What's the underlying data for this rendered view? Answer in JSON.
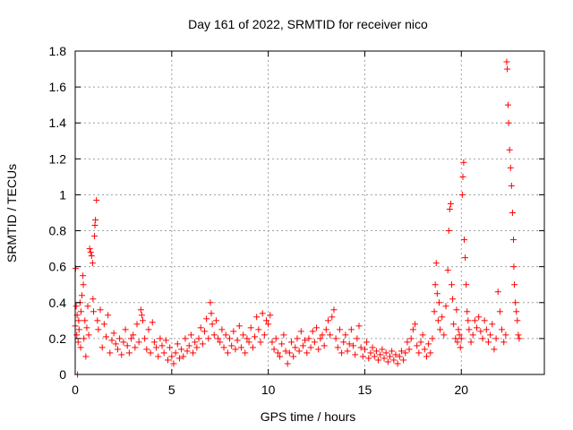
{
  "chart_data": {
    "type": "scatter",
    "title": "Day 161 of 2022, SRMTID for receiver nico",
    "xlabel": "GPS time / hours",
    "ylabel": "SRMTID / TECUs",
    "xlim": [
      0,
      24.3
    ],
    "ylim": [
      0,
      1.8
    ],
    "xticks": [
      0,
      5,
      10,
      15,
      20
    ],
    "xtick_labels": [
      "0",
      "5",
      "10",
      "15",
      "20"
    ],
    "yticks": [
      0,
      0.2,
      0.4,
      0.6,
      0.8,
      1.0,
      1.2,
      1.4,
      1.6,
      1.8
    ],
    "ytick_labels": [
      "0",
      "0.2",
      "0.4",
      "0.6",
      "0.8",
      "1",
      "1.2",
      "1.4",
      "1.6",
      "1.8"
    ],
    "grid": true,
    "marker": "+",
    "color": "#ff0000",
    "series": [
      {
        "name": "SRMTID",
        "points": [
          [
            0.0,
            0.27
          ],
          [
            0.02,
            0.59
          ],
          [
            0.05,
            0.38
          ],
          [
            0.08,
            0.22
          ],
          [
            0.1,
            0.33
          ],
          [
            0.12,
            0.0
          ],
          [
            0.15,
            0.18
          ],
          [
            0.18,
            0.3
          ],
          [
            0.2,
            0.25
          ],
          [
            0.25,
            0.4
          ],
          [
            0.28,
            0.15
          ],
          [
            0.3,
            0.35
          ],
          [
            0.35,
            0.44
          ],
          [
            0.4,
            0.55
          ],
          [
            0.42,
            0.5
          ],
          [
            0.45,
            0.2
          ],
          [
            0.5,
            0.3
          ],
          [
            0.55,
            0.1
          ],
          [
            0.6,
            0.26
          ],
          [
            0.65,
            0.38
          ],
          [
            0.7,
            0.22
          ],
          [
            0.75,
            0.7
          ],
          [
            0.8,
            0.68
          ],
          [
            0.85,
            0.66
          ],
          [
            0.9,
            0.62
          ],
          [
            0.92,
            0.42
          ],
          [
            0.95,
            0.35
          ],
          [
            1.0,
            0.77
          ],
          [
            1.02,
            0.83
          ],
          [
            1.05,
            0.86
          ],
          [
            1.1,
            0.97
          ],
          [
            1.15,
            0.3
          ],
          [
            1.2,
            0.25
          ],
          [
            1.3,
            0.36
          ],
          [
            1.4,
            0.15
          ],
          [
            1.5,
            0.28
          ],
          [
            1.6,
            0.21
          ],
          [
            1.7,
            0.33
          ],
          [
            1.8,
            0.12
          ],
          [
            1.9,
            0.19
          ],
          [
            2.0,
            0.23
          ],
          [
            2.1,
            0.17
          ],
          [
            2.2,
            0.14
          ],
          [
            2.3,
            0.2
          ],
          [
            2.4,
            0.11
          ],
          [
            2.5,
            0.18
          ],
          [
            2.6,
            0.25
          ],
          [
            2.7,
            0.16
          ],
          [
            2.8,
            0.12
          ],
          [
            2.9,
            0.2
          ],
          [
            3.0,
            0.22
          ],
          [
            3.1,
            0.15
          ],
          [
            3.2,
            0.28
          ],
          [
            3.3,
            0.18
          ],
          [
            3.4,
            0.36
          ],
          [
            3.45,
            0.33
          ],
          [
            3.5,
            0.3
          ],
          [
            3.6,
            0.2
          ],
          [
            3.7,
            0.14
          ],
          [
            3.8,
            0.25
          ],
          [
            3.9,
            0.12
          ],
          [
            4.0,
            0.29
          ],
          [
            4.1,
            0.18
          ],
          [
            4.2,
            0.15
          ],
          [
            4.3,
            0.1
          ],
          [
            4.4,
            0.2
          ],
          [
            4.5,
            0.16
          ],
          [
            4.6,
            0.12
          ],
          [
            4.7,
            0.19
          ],
          [
            4.8,
            0.08
          ],
          [
            4.9,
            0.15
          ],
          [
            5.0,
            0.1
          ],
          [
            5.1,
            0.06
          ],
          [
            5.2,
            0.12
          ],
          [
            5.3,
            0.17
          ],
          [
            5.4,
            0.09
          ],
          [
            5.5,
            0.14
          ],
          [
            5.6,
            0.1
          ],
          [
            5.7,
            0.2
          ],
          [
            5.8,
            0.13
          ],
          [
            5.9,
            0.16
          ],
          [
            6.0,
            0.22
          ],
          [
            6.1,
            0.12
          ],
          [
            6.2,
            0.18
          ],
          [
            6.3,
            0.15
          ],
          [
            6.4,
            0.2
          ],
          [
            6.5,
            0.26
          ],
          [
            6.6,
            0.17
          ],
          [
            6.7,
            0.24
          ],
          [
            6.8,
            0.31
          ],
          [
            6.9,
            0.2
          ],
          [
            7.0,
            0.4
          ],
          [
            7.05,
            0.34
          ],
          [
            7.1,
            0.28
          ],
          [
            7.2,
            0.22
          ],
          [
            7.3,
            0.3
          ],
          [
            7.4,
            0.2
          ],
          [
            7.5,
            0.18
          ],
          [
            7.6,
            0.25
          ],
          [
            7.7,
            0.15
          ],
          [
            7.8,
            0.22
          ],
          [
            7.9,
            0.12
          ],
          [
            8.0,
            0.2
          ],
          [
            8.1,
            0.16
          ],
          [
            8.2,
            0.24
          ],
          [
            8.3,
            0.14
          ],
          [
            8.4,
            0.19
          ],
          [
            8.5,
            0.27
          ],
          [
            8.6,
            0.15
          ],
          [
            8.7,
            0.22
          ],
          [
            8.8,
            0.12
          ],
          [
            8.9,
            0.2
          ],
          [
            9.0,
            0.18
          ],
          [
            9.1,
            0.26
          ],
          [
            9.2,
            0.15
          ],
          [
            9.3,
            0.21
          ],
          [
            9.4,
            0.32
          ],
          [
            9.5,
            0.25
          ],
          [
            9.6,
            0.18
          ],
          [
            9.7,
            0.34
          ],
          [
            9.8,
            0.22
          ],
          [
            9.9,
            0.3
          ],
          [
            10.0,
            0.28
          ],
          [
            10.1,
            0.33
          ],
          [
            10.2,
            0.18
          ],
          [
            10.3,
            0.14
          ],
          [
            10.4,
            0.2
          ],
          [
            10.5,
            0.12
          ],
          [
            10.6,
            0.1
          ],
          [
            10.7,
            0.17
          ],
          [
            10.8,
            0.22
          ],
          [
            10.9,
            0.13
          ],
          [
            11.0,
            0.06
          ],
          [
            11.1,
            0.12
          ],
          [
            11.2,
            0.18
          ],
          [
            11.3,
            0.1
          ],
          [
            11.4,
            0.15
          ],
          [
            11.5,
            0.2
          ],
          [
            11.6,
            0.13
          ],
          [
            11.7,
            0.24
          ],
          [
            11.8,
            0.16
          ],
          [
            11.9,
            0.19
          ],
          [
            12.0,
            0.12
          ],
          [
            12.1,
            0.2
          ],
          [
            12.2,
            0.15
          ],
          [
            12.3,
            0.24
          ],
          [
            12.4,
            0.18
          ],
          [
            12.5,
            0.26
          ],
          [
            12.6,
            0.14
          ],
          [
            12.7,
            0.2
          ],
          [
            12.8,
            0.22
          ],
          [
            12.9,
            0.16
          ],
          [
            13.0,
            0.25
          ],
          [
            13.1,
            0.3
          ],
          [
            13.2,
            0.22
          ],
          [
            13.3,
            0.32
          ],
          [
            13.4,
            0.36
          ],
          [
            13.5,
            0.2
          ],
          [
            13.6,
            0.15
          ],
          [
            13.7,
            0.25
          ],
          [
            13.8,
            0.12
          ],
          [
            13.9,
            0.18
          ],
          [
            14.0,
            0.22
          ],
          [
            14.1,
            0.13
          ],
          [
            14.2,
            0.17
          ],
          [
            14.3,
            0.25
          ],
          [
            14.4,
            0.16
          ],
          [
            14.5,
            0.11
          ],
          [
            14.6,
            0.2
          ],
          [
            14.7,
            0.27
          ],
          [
            14.8,
            0.15
          ],
          [
            14.9,
            0.1
          ],
          [
            15.0,
            0.14
          ],
          [
            15.1,
            0.18
          ],
          [
            15.2,
            0.09
          ],
          [
            15.3,
            0.12
          ],
          [
            15.4,
            0.15
          ],
          [
            15.5,
            0.1
          ],
          [
            15.6,
            0.13
          ],
          [
            15.7,
            0.08
          ],
          [
            15.8,
            0.11
          ],
          [
            15.9,
            0.14
          ],
          [
            16.0,
            0.09
          ],
          [
            16.1,
            0.12
          ],
          [
            16.2,
            0.07
          ],
          [
            16.3,
            0.1
          ],
          [
            16.4,
            0.13
          ],
          [
            16.5,
            0.08
          ],
          [
            16.6,
            0.11
          ],
          [
            16.7,
            0.06
          ],
          [
            16.8,
            0.1
          ],
          [
            16.9,
            0.13
          ],
          [
            17.0,
            0.08
          ],
          [
            17.1,
            0.12
          ],
          [
            17.2,
            0.18
          ],
          [
            17.3,
            0.14
          ],
          [
            17.4,
            0.2
          ],
          [
            17.5,
            0.25
          ],
          [
            17.6,
            0.28
          ],
          [
            17.7,
            0.16
          ],
          [
            17.8,
            0.12
          ],
          [
            17.9,
            0.18
          ],
          [
            18.0,
            0.22
          ],
          [
            18.1,
            0.14
          ],
          [
            18.2,
            0.1
          ],
          [
            18.3,
            0.17
          ],
          [
            18.4,
            0.12
          ],
          [
            18.5,
            0.2
          ],
          [
            18.6,
            0.35
          ],
          [
            18.65,
            0.5
          ],
          [
            18.7,
            0.62
          ],
          [
            18.75,
            0.45
          ],
          [
            18.8,
            0.3
          ],
          [
            18.85,
            0.4
          ],
          [
            18.9,
            0.25
          ],
          [
            19.0,
            0.32
          ],
          [
            19.1,
            0.22
          ],
          [
            19.2,
            0.38
          ],
          [
            19.3,
            0.58
          ],
          [
            19.35,
            0.8
          ],
          [
            19.4,
            0.92
          ],
          [
            19.45,
            0.95
          ],
          [
            19.5,
            0.5
          ],
          [
            19.55,
            0.42
          ],
          [
            19.6,
            0.28
          ],
          [
            19.7,
            0.2
          ],
          [
            19.75,
            0.36
          ],
          [
            19.8,
            0.18
          ],
          [
            19.85,
            0.25
          ],
          [
            19.9,
            0.22
          ],
          [
            19.95,
            0.15
          ],
          [
            20.0,
            0.2
          ],
          [
            20.05,
            1.0
          ],
          [
            20.08,
            1.1
          ],
          [
            20.12,
            1.18
          ],
          [
            20.15,
            0.75
          ],
          [
            20.2,
            0.65
          ],
          [
            20.25,
            0.5
          ],
          [
            20.3,
            0.35
          ],
          [
            20.35,
            0.3
          ],
          [
            20.4,
            0.25
          ],
          [
            20.5,
            0.18
          ],
          [
            20.6,
            0.22
          ],
          [
            20.7,
            0.3
          ],
          [
            20.8,
            0.26
          ],
          [
            20.9,
            0.32
          ],
          [
            21.0,
            0.24
          ],
          [
            21.1,
            0.2
          ],
          [
            21.2,
            0.3
          ],
          [
            21.3,
            0.25
          ],
          [
            21.4,
            0.18
          ],
          [
            21.5,
            0.22
          ],
          [
            21.6,
            0.28
          ],
          [
            21.7,
            0.14
          ],
          [
            21.8,
            0.2
          ],
          [
            21.9,
            0.46
          ],
          [
            22.0,
            0.35
          ],
          [
            22.1,
            0.25
          ],
          [
            22.2,
            0.18
          ],
          [
            22.3,
            0.22
          ],
          [
            22.35,
            1.74
          ],
          [
            22.38,
            1.7
          ],
          [
            22.42,
            1.5
          ],
          [
            22.45,
            1.4
          ],
          [
            22.5,
            1.25
          ],
          [
            22.55,
            1.15
          ],
          [
            22.6,
            1.05
          ],
          [
            22.65,
            0.9
          ],
          [
            22.7,
            0.75
          ],
          [
            22.72,
            0.6
          ],
          [
            22.75,
            0.5
          ],
          [
            22.8,
            0.4
          ],
          [
            22.85,
            0.35
          ],
          [
            22.9,
            0.3
          ],
          [
            22.95,
            0.22
          ],
          [
            23.0,
            0.2
          ]
        ]
      }
    ]
  }
}
